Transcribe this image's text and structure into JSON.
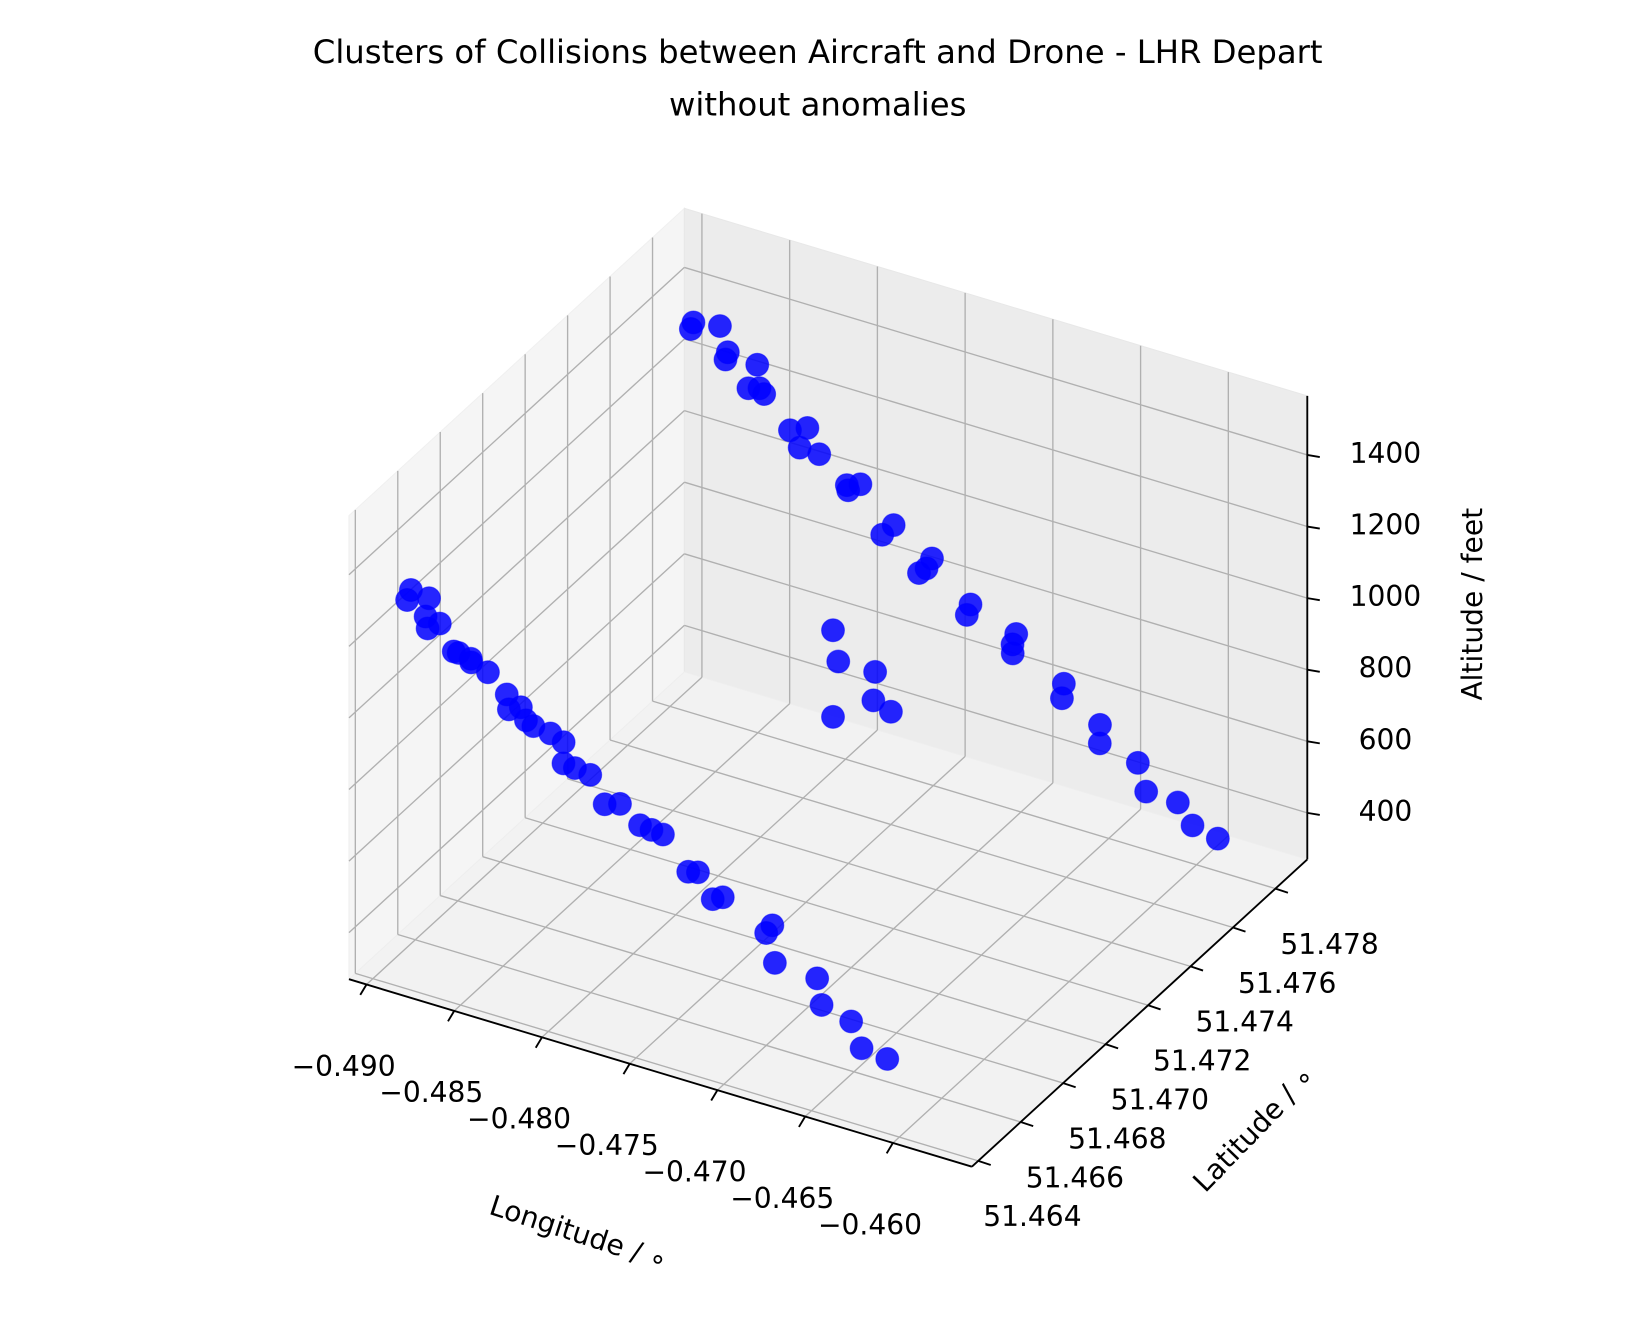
{
  "chart_data": {
    "type": "scatter3d",
    "title": [
      "Clusters of Collisions between Aircraft and Drone - LHR Depart",
      "without anomalies"
    ],
    "xlabel": "Longitude / ∘",
    "ylabel": "Latitude / ∘",
    "zlabel": "Altitude / feet",
    "xlim": [
      -0.491,
      -0.4555
    ],
    "ylim": [
      51.4637,
      51.4795
    ],
    "zlim": [
      270,
      1565
    ],
    "xticks": [
      {
        "value": -0.49,
        "label": "−0.490"
      },
      {
        "value": -0.485,
        "label": "−0.485"
      },
      {
        "value": -0.48,
        "label": "−0.480"
      },
      {
        "value": -0.475,
        "label": "−0.475"
      },
      {
        "value": -0.47,
        "label": "−0.470"
      },
      {
        "value": -0.465,
        "label": "−0.465"
      },
      {
        "value": -0.46,
        "label": "−0.460"
      }
    ],
    "yticks": [
      51.464,
      51.466,
      51.468,
      {
        "value": 51.47,
        "label": "51.470"
      },
      51.472,
      51.474,
      51.476,
      51.478
    ],
    "zticks": [
      400,
      600,
      800,
      1000,
      1200,
      1400
    ],
    "grid": true,
    "series": [
      {
        "color": "#0000ff",
        "x": [
          -0.4877,
          -0.4874,
          -0.487,
          -0.4866,
          -0.486,
          -0.4855,
          -0.485,
          -0.4843,
          -0.4836,
          -0.4829,
          -0.4822,
          -0.4815,
          -0.4808,
          -0.48,
          -0.4792,
          -0.4784,
          -0.4775,
          -0.4767,
          -0.4758,
          -0.4749,
          -0.474,
          -0.473,
          -0.472,
          -0.471,
          -0.47,
          -0.4689,
          -0.4678,
          -0.4667,
          -0.4655,
          -0.4643,
          -0.4631,
          -0.4619,
          -0.4607,
          -0.4595,
          -0.4583
        ],
        "y": [
          51.4772,
          51.4782,
          51.4765,
          51.4778,
          51.4788,
          51.477,
          51.4783,
          51.4775,
          51.4764,
          51.4786,
          51.4772,
          51.478,
          51.4765,
          51.4787,
          51.4774,
          51.4768,
          51.4782,
          51.477,
          51.4786,
          51.4776,
          51.4765,
          51.4781,
          51.4771,
          51.4786,
          51.4776,
          51.4767,
          51.4782,
          51.4772,
          51.478,
          51.477,
          51.4778,
          51.4772,
          51.4777,
          51.4774,
          51.4776
        ],
        "z": [
          1420,
          1360,
          1450,
          1300,
          1240,
          1380,
          1200,
          1270,
          1340,
          1120,
          1200,
          1100,
          1210,
          1000,
          1080,
          1110,
          950,
          1000,
          860,
          900,
          960,
          800,
          840,
          720,
          760,
          800,
          650,
          680,
          580,
          600,
          520,
          490,
          450,
          420,
          390
        ]
      },
      {
        "color": "#0000ff",
        "x": [
          -0.4789,
          -0.4786,
          -0.4765,
          -0.4789,
          -0.4766,
          -0.4756
        ],
        "y": [
          51.4765,
          51.4765,
          51.4765,
          51.4765,
          51.4765,
          51.4765
        ],
        "z": [
          728,
          645,
          647,
          486,
          566,
          549
        ]
      },
      {
        "color": "#0000ff",
        "x": [
          -0.4868,
          -0.4895,
          -0.4893,
          -0.4888,
          -0.4885,
          -0.488,
          -0.4876,
          -0.4872,
          -0.4866,
          -0.486,
          -0.4858,
          -0.4855,
          -0.485,
          -0.4843,
          -0.4837,
          -0.483,
          -0.4823,
          -0.4817,
          -0.481,
          -0.4803,
          -0.4795,
          -0.4787,
          -0.478,
          -0.4771,
          -0.4763,
          -0.4755,
          -0.4745,
          -0.4736,
          -0.4726,
          -0.4716,
          -0.4705,
          -0.4694,
          -0.4683,
          -0.4671,
          -0.466,
          -0.4648,
          -0.4636,
          -0.4625
        ],
        "y": [
          51.464,
          51.4652,
          51.466,
          51.4648,
          51.4668,
          51.4655,
          51.4645,
          51.4663,
          51.465,
          51.467,
          51.4675,
          51.4657,
          51.4645,
          51.4665,
          51.4652,
          51.4672,
          51.466,
          51.4647,
          51.4668,
          51.4655,
          51.4643,
          51.4663,
          51.465,
          51.467,
          51.4658,
          51.4646,
          51.4665,
          51.4653,
          51.4661,
          51.4648,
          51.4667,
          51.4655,
          51.465,
          51.466,
          51.4653,
          51.4657,
          51.4652,
          51.4655
        ],
        "z": [
          1380,
          1270,
          1150,
          1330,
          1050,
          1210,
          1290,
          1080,
          1180,
          960,
          900,
          1100,
          1200,
          940,
          1050,
          860,
          960,
          1060,
          820,
          920,
          1010,
          800,
          880,
          700,
          790,
          880,
          660,
          740,
          640,
          720,
          560,
          620,
          580,
          500,
          480,
          430,
          400,
          370
        ]
      }
    ]
  }
}
